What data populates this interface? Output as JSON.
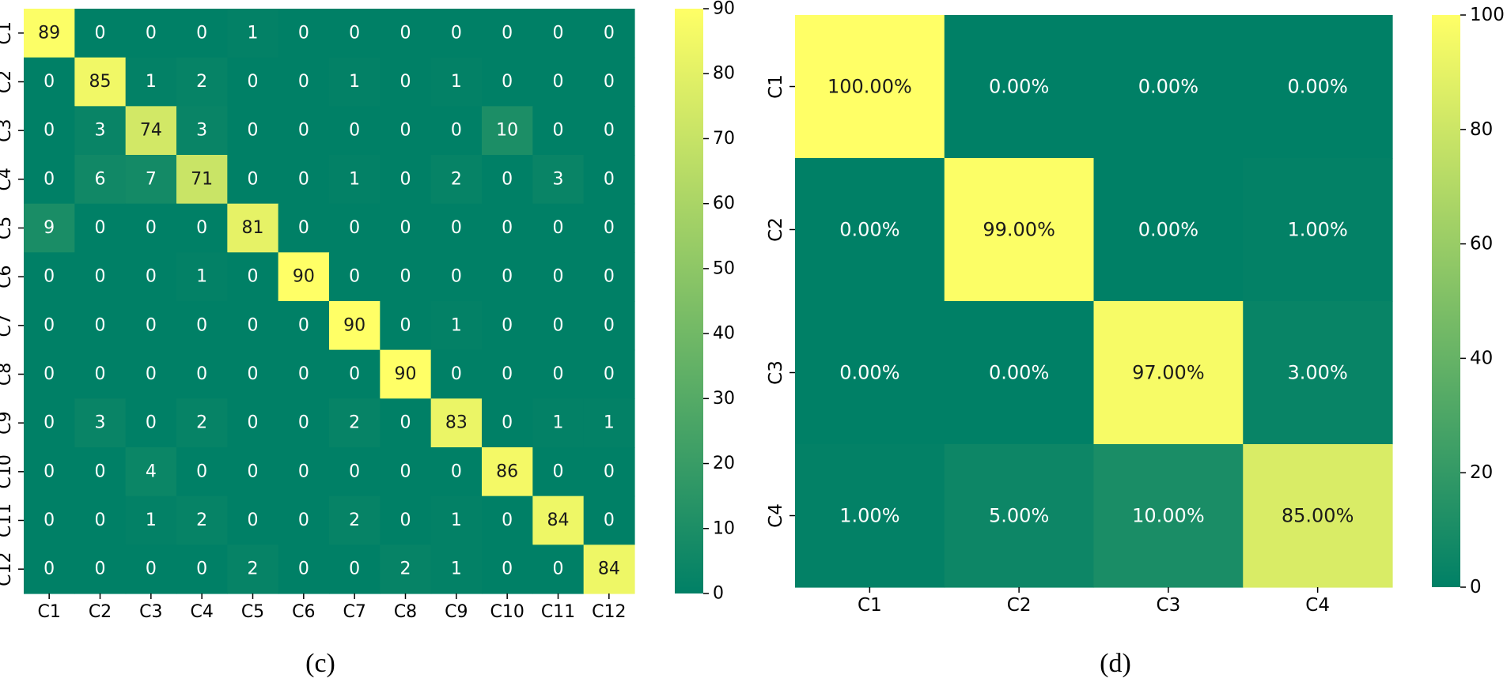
{
  "chart_data": [
    {
      "type": "heatmap",
      "title": "",
      "xlabel": "",
      "ylabel": "",
      "caption": "(c)",
      "x_labels": [
        "C1",
        "C2",
        "C3",
        "C4",
        "C5",
        "C6",
        "C7",
        "C8",
        "C9",
        "C10",
        "C11",
        "C12"
      ],
      "y_labels": [
        "C1",
        "C2",
        "C3",
        "C4",
        "C5",
        "C6",
        "C7",
        "C8",
        "C9",
        "C10",
        "C11",
        "C12"
      ],
      "values": [
        [
          89,
          0,
          0,
          0,
          1,
          0,
          0,
          0,
          0,
          0,
          0,
          0
        ],
        [
          0,
          85,
          1,
          2,
          0,
          0,
          1,
          0,
          1,
          0,
          0,
          0
        ],
        [
          0,
          3,
          74,
          3,
          0,
          0,
          0,
          0,
          0,
          10,
          0,
          0
        ],
        [
          0,
          6,
          7,
          71,
          0,
          0,
          1,
          0,
          2,
          0,
          3,
          0
        ],
        [
          9,
          0,
          0,
          0,
          81,
          0,
          0,
          0,
          0,
          0,
          0,
          0
        ],
        [
          0,
          0,
          0,
          1,
          0,
          90,
          0,
          0,
          0,
          0,
          0,
          0
        ],
        [
          0,
          0,
          0,
          0,
          0,
          0,
          90,
          0,
          1,
          0,
          0,
          0
        ],
        [
          0,
          0,
          0,
          0,
          0,
          0,
          0,
          90,
          0,
          0,
          0,
          0
        ],
        [
          0,
          3,
          0,
          2,
          0,
          0,
          2,
          0,
          83,
          0,
          1,
          1
        ],
        [
          0,
          0,
          4,
          0,
          0,
          0,
          0,
          0,
          0,
          86,
          0,
          0
        ],
        [
          0,
          0,
          1,
          2,
          0,
          0,
          2,
          0,
          1,
          0,
          84,
          0
        ],
        [
          0,
          0,
          0,
          0,
          2,
          0,
          0,
          2,
          1,
          0,
          0,
          84
        ]
      ],
      "cell_labels": [
        [
          "89",
          "0",
          "0",
          "0",
          "1",
          "0",
          "0",
          "0",
          "0",
          "0",
          "0",
          "0"
        ],
        [
          "0",
          "85",
          "1",
          "2",
          "0",
          "0",
          "1",
          "0",
          "1",
          "0",
          "0",
          "0"
        ],
        [
          "0",
          "3",
          "74",
          "3",
          "0",
          "0",
          "0",
          "0",
          "0",
          "10",
          "0",
          "0"
        ],
        [
          "0",
          "6",
          "7",
          "71",
          "0",
          "0",
          "1",
          "0",
          "2",
          "0",
          "3",
          "0"
        ],
        [
          "9",
          "0",
          "0",
          "0",
          "81",
          "0",
          "0",
          "0",
          "0",
          "0",
          "0",
          "0"
        ],
        [
          "0",
          "0",
          "0",
          "1",
          "0",
          "90",
          "0",
          "0",
          "0",
          "0",
          "0",
          "0"
        ],
        [
          "0",
          "0",
          "0",
          "0",
          "0",
          "0",
          "90",
          "0",
          "1",
          "0",
          "0",
          "0"
        ],
        [
          "0",
          "0",
          "0",
          "0",
          "0",
          "0",
          "0",
          "90",
          "0",
          "0",
          "0",
          "0"
        ],
        [
          "0",
          "3",
          "0",
          "2",
          "0",
          "0",
          "2",
          "0",
          "83",
          "0",
          "1",
          "1"
        ],
        [
          "0",
          "0",
          "4",
          "0",
          "0",
          "0",
          "0",
          "0",
          "0",
          "86",
          "0",
          "0"
        ],
        [
          "0",
          "0",
          "1",
          "2",
          "0",
          "0",
          "2",
          "0",
          "1",
          "0",
          "84",
          "0"
        ],
        [
          "0",
          "0",
          "0",
          "0",
          "2",
          "0",
          "0",
          "2",
          "1",
          "0",
          "0",
          "84"
        ]
      ],
      "colorbar": {
        "range": [
          0,
          90
        ],
        "ticks": [
          "0",
          "10",
          "20",
          "30",
          "40",
          "50",
          "60",
          "70",
          "80",
          "90"
        ]
      },
      "colormap": "summer",
      "colors": {
        "low": "#008066",
        "high": "#ffff66"
      }
    },
    {
      "type": "heatmap",
      "title": "",
      "xlabel": "",
      "ylabel": "",
      "caption": "(d)",
      "x_labels": [
        "C1",
        "C2",
        "C3",
        "C4"
      ],
      "y_labels": [
        "C1",
        "C2",
        "C3",
        "C4"
      ],
      "values": [
        [
          100,
          0,
          0,
          0
        ],
        [
          0,
          99,
          0,
          1
        ],
        [
          0,
          0,
          97,
          3
        ],
        [
          1,
          5,
          10,
          85
        ]
      ],
      "cell_labels": [
        [
          "100.00%",
          "0.00%",
          "0.00%",
          "0.00%"
        ],
        [
          "0.00%",
          "99.00%",
          "0.00%",
          "1.00%"
        ],
        [
          "0.00%",
          "0.00%",
          "97.00%",
          "3.00%"
        ],
        [
          "1.00%",
          "5.00%",
          "10.00%",
          "85.00%"
        ]
      ],
      "colorbar": {
        "range": [
          0,
          100
        ],
        "ticks": [
          "0",
          "20",
          "40",
          "60",
          "80",
          "100"
        ]
      },
      "colormap": "summer",
      "colors": {
        "low": "#008066",
        "high": "#ffff66"
      }
    }
  ]
}
